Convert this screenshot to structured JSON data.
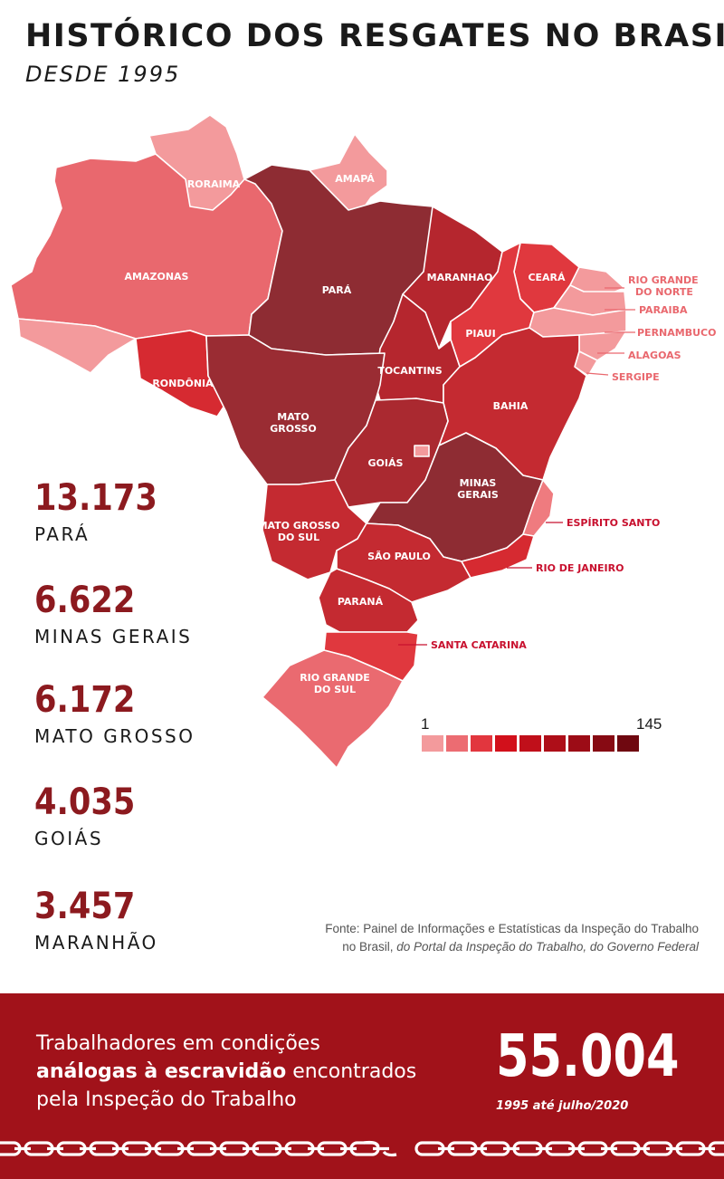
{
  "title": "HISTÓRICO DOS RESGATES NO BRASIL",
  "subtitle": "DESDE 1995",
  "map": {
    "states": {
      "roraima": {
        "label": "RORAIMA",
        "color": "#f39a9c"
      },
      "amapa": {
        "label": "AMAPÁ",
        "color": "#f39a9c"
      },
      "amazonas": {
        "label": "AMAZONAS",
        "color": "#e9686e"
      },
      "acre": {
        "label": "",
        "color": "#f39a9c"
      },
      "para": {
        "label": "PARÁ",
        "color": "#8e2c33"
      },
      "maranhao": {
        "label": "MARANHAO",
        "color": "#b5262e"
      },
      "ceara": {
        "label": "CEARÁ",
        "color": "#e0383e"
      },
      "piaui": {
        "label": "PIAUI",
        "color": "#e0383e"
      },
      "rio_grande_do_norte": {
        "label": "RIO GRANDE DO NORTE",
        "color": "#f39a9c"
      },
      "paraiba": {
        "label": "PARAIBA",
        "color": "#f39a9c"
      },
      "pernambuco": {
        "label": "PERNAMBUCO",
        "color": "#f39a9c"
      },
      "alagoas": {
        "label": "ALAGOAS",
        "color": "#f39a9c"
      },
      "sergipe": {
        "label": "SERGIPE",
        "color": "#f39a9c"
      },
      "rondonia": {
        "label": "RONDÔNIA",
        "color": "#d62a31"
      },
      "tocantins": {
        "label": "TOCANTINS",
        "color": "#b5262e"
      },
      "bahia": {
        "label": "BAHIA",
        "color": "#c42a31"
      },
      "mato_grosso": {
        "label": "MATO GROSSO",
        "color": "#9a2c33"
      },
      "goias": {
        "label": "GOIÁS",
        "color": "#aa2930"
      },
      "distrito_federal": {
        "label": "",
        "color": "#f39a9c"
      },
      "minas_gerais": {
        "label": "MINAS GERAIS",
        "color": "#8e2c33"
      },
      "espirito_santo": {
        "label": "ESPÍRITO SANTO",
        "color": "#ef7b7f"
      },
      "mato_grosso_do_sul": {
        "label": "MATO GROSSO DO SUL",
        "color": "#c42a31"
      },
      "sao_paulo": {
        "label": "SÃO PAULO",
        "color": "#c42a31"
      },
      "rio_de_janeiro": {
        "label": "RIO DE JANEIRO",
        "color": "#d62a31"
      },
      "parana": {
        "label": "PARANÁ",
        "color": "#c42a31"
      },
      "santa_catarina": {
        "label": "SANTA CATARINA",
        "color": "#e0383e"
      },
      "rio_grande_do_sul": {
        "label": "RIO GRANDE DO SUL",
        "color": "#ea6a70"
      }
    },
    "external_label_colors": {
      "pink": "#e9686e",
      "red": "#c8102e"
    }
  },
  "ranking": [
    {
      "value": "13.173",
      "state": "PARÁ"
    },
    {
      "value": "6.622",
      "state": "MINAS GERAIS"
    },
    {
      "value": "6.172",
      "state": "MATO GROSSO"
    },
    {
      "value": "4.035",
      "state": "GOIÁS"
    },
    {
      "value": "3.457",
      "state": "MARANHÃO"
    }
  ],
  "legend": {
    "min": "1",
    "max": "145",
    "colors": [
      "#f39a9c",
      "#ec6c72",
      "#e2363e",
      "#d2101b",
      "#c00f1a",
      "#ae0e18",
      "#9c0c16",
      "#870a13",
      "#6f0810"
    ]
  },
  "source": {
    "line1": "Fonte: Painel de Informações e Estatísticas da Inspeção do Trabalho",
    "line2_plain": "no Brasil, ",
    "line2_italic": "do Portal da Inspeção do Trabalho, do Governo Federal"
  },
  "banner": {
    "line1": "Trabalhadores em condições",
    "line2_bold": "análogas à escravidão",
    "line2_rest": " encontrados",
    "line3": "pela Inspeção do Trabalho",
    "total": "55.004",
    "period": "1995 até julho/2020",
    "background": "#a1121a"
  }
}
